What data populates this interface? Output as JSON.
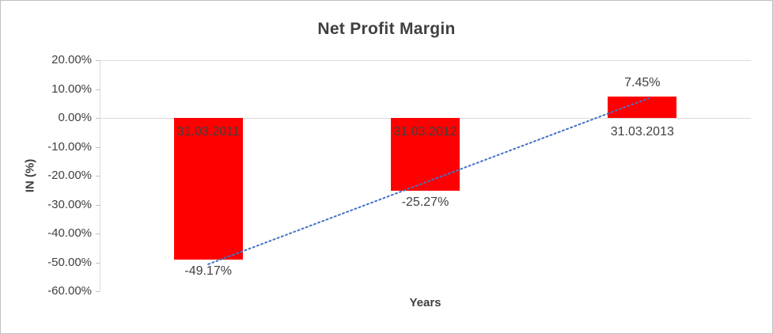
{
  "chart": {
    "title": "Net Profit Margin",
    "y_axis_label": "IN (%)",
    "x_axis_label": "Years",
    "y_ticks": [
      "20.00%",
      "10.00%",
      "0.00%",
      "-10.00%",
      "-20.00%",
      "-30.00%",
      "-40.00%",
      "-50.00%",
      "-60.00%"
    ],
    "colors": {
      "bar": "#ff0000",
      "trendline": "#4472c4",
      "text": "#404040",
      "gridline": "#d9d9d9",
      "axis": "#bfbfbf"
    }
  },
  "chart_data": {
    "type": "bar",
    "title": "Net Profit Margin",
    "xlabel": "Years",
    "ylabel": "IN (%)",
    "categories": [
      "31.03.2011",
      "31.03.2012",
      "31.03.2013"
    ],
    "values": [
      -49.17,
      -25.27,
      7.45
    ],
    "value_labels": [
      "-49.17%",
      "-25.27%",
      "7.45%"
    ],
    "ylim": [
      -60,
      20
    ],
    "y_tick_step": 10,
    "grid": false,
    "legend": false,
    "trendline": {
      "type": "linear",
      "style": "dotted"
    }
  }
}
